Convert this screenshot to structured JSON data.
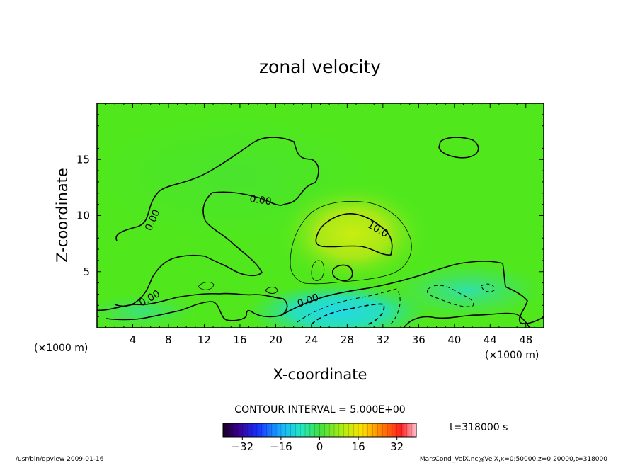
{
  "chart_data": {
    "type": "heatmap",
    "title": "zonal velocity",
    "xlabel": "X-coordinate",
    "ylabel": "Z-coordinate",
    "x_unit_label": "(×1000 m)",
    "x_unit_label_right": "(×1000 m)",
    "xlim": [
      0,
      50
    ],
    "ylim": [
      0,
      20
    ],
    "xticks": [
      4,
      8,
      12,
      16,
      20,
      24,
      28,
      32,
      36,
      40,
      44,
      48
    ],
    "yticks": [
      5,
      10,
      15
    ],
    "contour_interval_text": "CONTOUR INTERVAL = 5.000E+00",
    "contour_labels": [
      "0.00",
      "0.00",
      "0.00",
      "0.00",
      "10.0"
    ],
    "colorbar": {
      "min": -40,
      "max": 40,
      "ticks": [
        -32,
        -16,
        0,
        16,
        32
      ],
      "tick_labels": [
        "−32",
        "−16",
        "0",
        "16",
        "32"
      ]
    },
    "time_text": "t=318000 s",
    "footer_left": "/usr/bin/gpview   2009-01-16",
    "footer_right": "MarsCond_VelX.nc@VelX,x=0:50000,z=0:20000,t=318000",
    "features": [
      {
        "kind": "positive_jet",
        "x": 29,
        "z": 8.5,
        "max_value": 12
      },
      {
        "kind": "negative_core",
        "x": 27,
        "z": 1.5,
        "min_value": -12
      },
      {
        "kind": "negative_region",
        "x": 41,
        "z": 3,
        "min_value": -6
      }
    ]
  }
}
